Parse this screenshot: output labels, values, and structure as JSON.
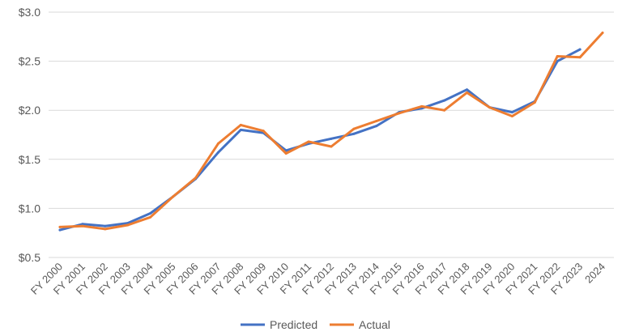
{
  "chart_data": {
    "type": "line",
    "categories": [
      "FY 2000",
      "FY 2001",
      "FY 2002",
      "FY 2003",
      "FY 2004",
      "FY 2005",
      "FY 2006",
      "FY 2007",
      "FY 2008",
      "FY 2009",
      "FY 2010",
      "FY 2011",
      "FY 2012",
      "FY 2013",
      "FY 2014",
      "FY 2015",
      "FY 2016",
      "FY 2017",
      "FY 2018",
      "FY 2019",
      "FY 2020",
      "FY 2021",
      "FY 2022",
      "FY 2023",
      "2024"
    ],
    "y_ticks": [
      "$0.5",
      "$1.0",
      "$1.5",
      "$2.0",
      "$2.5",
      "$3.0"
    ],
    "y_tick_values": [
      0.5,
      1.0,
      1.5,
      2.0,
      2.5,
      3.0
    ],
    "ylim": [
      0.5,
      3.0
    ],
    "grid": true,
    "legend_position": "bottom",
    "series": [
      {
        "name": "Predicted",
        "color": "#4472C4",
        "values": [
          0.78,
          0.84,
          0.82,
          0.85,
          0.95,
          1.12,
          1.3,
          1.57,
          1.8,
          1.77,
          1.59,
          1.66,
          1.71,
          1.76,
          1.84,
          1.98,
          2.02,
          2.1,
          2.21,
          2.03,
          1.98,
          2.09,
          2.5,
          2.62,
          null
        ]
      },
      {
        "name": "Actual",
        "color": "#ED7D31",
        "values": [
          0.81,
          0.82,
          0.79,
          0.83,
          0.91,
          1.12,
          1.31,
          1.66,
          1.85,
          1.79,
          1.56,
          1.68,
          1.63,
          1.81,
          1.89,
          1.97,
          2.04,
          2.0,
          2.18,
          2.03,
          1.94,
          2.08,
          2.55,
          2.54,
          2.79
        ]
      }
    ]
  }
}
